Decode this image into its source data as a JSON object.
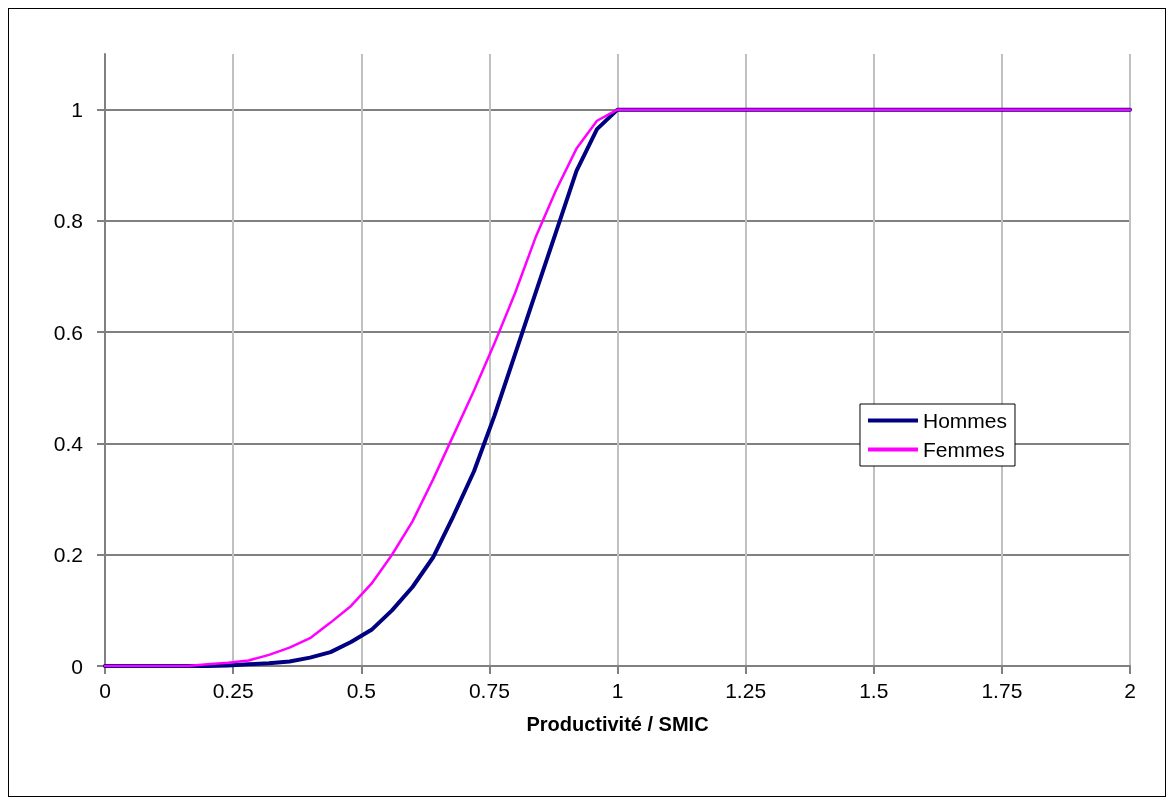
{
  "chart_data": {
    "type": "line",
    "xlabel": "Productivité / SMIC",
    "xlim": [
      0,
      2
    ],
    "xticks": [
      0,
      0.25,
      0.5,
      0.75,
      1,
      1.25,
      1.5,
      1.75,
      2
    ],
    "ylim": [
      0,
      1.1
    ],
    "yticks": [
      0,
      0.2,
      0.4,
      0.6,
      0.8,
      1
    ],
    "grid": true,
    "legend": "right",
    "marker": "none",
    "line_style": "solid",
    "series": [
      {
        "name": "Hommes",
        "color": "#000080",
        "x": [
          0,
          0.2,
          0.24,
          0.28,
          0.32,
          0.36,
          0.4,
          0.44,
          0.48,
          0.52,
          0.56,
          0.6,
          0.64,
          0.68,
          0.72,
          0.76,
          0.8,
          0.84,
          0.88,
          0.92,
          0.96,
          1,
          2
        ],
        "values": [
          0,
          0,
          0.001,
          0.003,
          0.005,
          0.008,
          0.015,
          0.025,
          0.043,
          0.065,
          0.1,
          0.142,
          0.195,
          0.27,
          0.35,
          0.45,
          0.56,
          0.67,
          0.78,
          0.89,
          0.965,
          1,
          1
        ]
      },
      {
        "name": "Femmes",
        "color": "#ff00ff",
        "x": [
          0,
          0.16,
          0.2,
          0.24,
          0.28,
          0.32,
          0.36,
          0.4,
          0.44,
          0.48,
          0.52,
          0.56,
          0.6,
          0.64,
          0.68,
          0.72,
          0.76,
          0.8,
          0.84,
          0.88,
          0.92,
          0.96,
          1,
          2
        ],
        "values": [
          0,
          0,
          0.003,
          0.006,
          0.01,
          0.02,
          0.033,
          0.05,
          0.078,
          0.108,
          0.148,
          0.2,
          0.26,
          0.335,
          0.415,
          0.495,
          0.58,
          0.67,
          0.77,
          0.855,
          0.93,
          0.98,
          1,
          1
        ]
      }
    ]
  }
}
